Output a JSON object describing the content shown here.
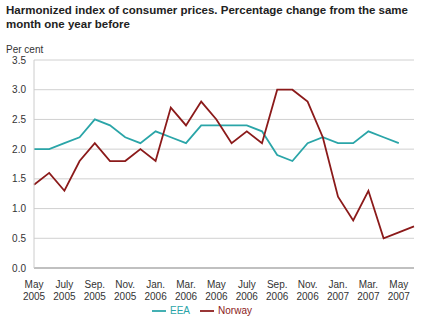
{
  "chart_data": {
    "type": "line",
    "title": "Harmonized index of consumer prices. Percentage change from the same month one year before",
    "y_label": "Per cent",
    "categories": [
      "May 2005",
      null,
      "July 2005",
      null,
      "Sep. 2005",
      null,
      "Nov. 2005",
      null,
      "Jan. 2006",
      null,
      "Mar. 2006",
      null,
      "May 2006",
      null,
      "July 2006",
      null,
      "Sep. 2006",
      null,
      "Nov. 2006",
      null,
      "Jan. 2007",
      null,
      "Mar. 2007",
      null,
      "May 2007",
      null
    ],
    "series": [
      {
        "name": "EEA",
        "color": "#2aa5a8",
        "values": [
          2.0,
          2.0,
          2.1,
          2.2,
          2.5,
          2.4,
          2.2,
          2.1,
          2.3,
          2.2,
          2.1,
          2.4,
          2.4,
          2.4,
          2.4,
          2.3,
          1.9,
          1.8,
          2.1,
          2.2,
          2.1,
          2.1,
          2.3,
          2.2,
          2.1,
          null
        ]
      },
      {
        "name": "Norway",
        "color": "#8b1a1a",
        "values": [
          1.4,
          1.6,
          1.3,
          1.8,
          2.1,
          1.8,
          1.8,
          2.0,
          1.8,
          2.7,
          2.4,
          2.8,
          2.5,
          2.1,
          2.3,
          2.1,
          3.0,
          3.0,
          2.8,
          2.2,
          1.2,
          0.8,
          1.3,
          0.5,
          0.6,
          0.7
        ]
      }
    ],
    "ylim": [
      0,
      3.5
    ],
    "yticks": [
      {
        "value": 0,
        "label": "0.0"
      },
      {
        "value": 0.5,
        "label": "0.5"
      },
      {
        "value": 1,
        "label": "1.0"
      },
      {
        "value": 1.5,
        "label": "1.5"
      },
      {
        "value": 2,
        "label": "2.0"
      },
      {
        "value": 2.5,
        "label": "2.5"
      },
      {
        "value": 3,
        "label": "3.0"
      },
      {
        "value": 3.5,
        "label": "3.5"
      }
    ],
    "grid": true,
    "legend": "bottom"
  }
}
